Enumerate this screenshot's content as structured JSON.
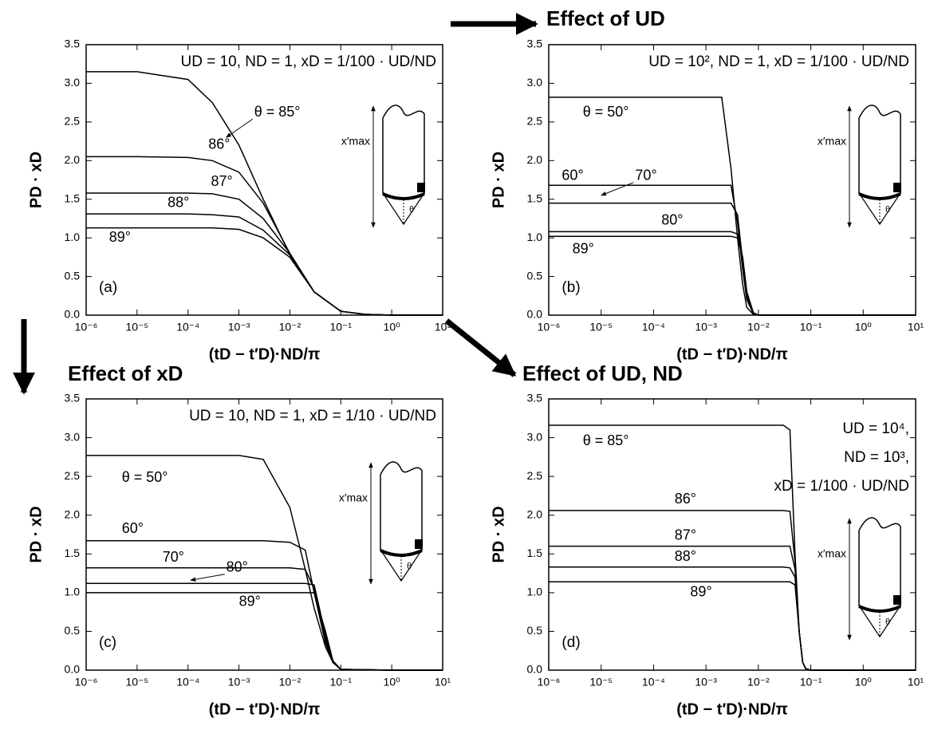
{
  "chart_data": [
    {
      "type": "line",
      "xscale": "log",
      "color": "#000000",
      "panel_label": "(a)",
      "annotation": [
        "UD = 10, ND = 1, xD = 1/100 · UD/ND"
      ],
      "inset_label": "x′max",
      "inset_angle": "θ",
      "xlabel": "(tD − t′D)·ND/π",
      "ylabel": "PD · xD",
      "xlim": [
        1e-06,
        10
      ],
      "ylim": [
        0,
        3.5
      ],
      "xticks": [
        {
          "value": 1e-06,
          "label": "10⁻⁶"
        },
        {
          "value": 1e-05,
          "label": "10⁻⁵"
        },
        {
          "value": 0.0001,
          "label": "10⁻⁴"
        },
        {
          "value": 0.001,
          "label": "10⁻³"
        },
        {
          "value": 0.01,
          "label": "10⁻²"
        },
        {
          "value": 0.1,
          "label": "10⁻¹"
        },
        {
          "value": 1,
          "label": "10⁰"
        },
        {
          "value": 10,
          "label": "10¹"
        }
      ],
      "yticks": [
        {
          "value": 0,
          "label": "0.0"
        },
        {
          "value": 0.5,
          "label": "0.5"
        },
        {
          "value": 1,
          "label": "1.0"
        },
        {
          "value": 1.5,
          "label": "1.5"
        },
        {
          "value": 2,
          "label": "2.0"
        },
        {
          "value": 2.5,
          "label": "2.5"
        },
        {
          "value": 3,
          "label": "3.0"
        },
        {
          "value": 3.5,
          "label": "3.5"
        }
      ],
      "x": [
        1e-06,
        1e-05,
        0.0001,
        0.0003,
        0.001,
        0.003,
        0.01,
        0.03,
        0.1,
        0.3,
        1,
        10
      ],
      "series": [
        {
          "name": "θ = 85°",
          "values": [
            3.15,
            3.15,
            3.05,
            2.75,
            2.2,
            1.5,
            0.78,
            0.3,
            0.05,
            0.01,
            0,
            0
          ]
        },
        {
          "name": "86°",
          "values": [
            2.05,
            2.05,
            2.04,
            2.0,
            1.85,
            1.45,
            0.8,
            0.3,
            0.05,
            0.01,
            0,
            0
          ]
        },
        {
          "name": "87°",
          "values": [
            1.58,
            1.58,
            1.58,
            1.57,
            1.5,
            1.25,
            0.8,
            0.3,
            0.05,
            0.01,
            0,
            0
          ]
        },
        {
          "name": "88°",
          "values": [
            1.31,
            1.31,
            1.31,
            1.3,
            1.27,
            1.1,
            0.78,
            0.3,
            0.05,
            0.01,
            0,
            0
          ]
        },
        {
          "name": "89°",
          "values": [
            1.13,
            1.13,
            1.13,
            1.13,
            1.11,
            1.0,
            0.75,
            0.3,
            0.05,
            0.01,
            0,
            0
          ]
        }
      ]
    },
    {
      "type": "line",
      "xscale": "log",
      "color": "#000000",
      "title": "Effect of UD",
      "panel_label": "(b)",
      "annotation": [
        "UD = 10², ND = 1, xD = 1/100 · UD/ND"
      ],
      "inset_label": "x′max",
      "inset_angle": "θ",
      "xlabel": "(tD − t′D)·ND/π",
      "ylabel": "PD · xD",
      "xlim": [
        1e-06,
        10
      ],
      "ylim": [
        0,
        3.5
      ],
      "xticks": [
        {
          "value": 1e-06,
          "label": "10⁻⁶"
        },
        {
          "value": 1e-05,
          "label": "10⁻⁵"
        },
        {
          "value": 0.0001,
          "label": "10⁻⁴"
        },
        {
          "value": 0.001,
          "label": "10⁻³"
        },
        {
          "value": 0.01,
          "label": "10⁻²"
        },
        {
          "value": 0.1,
          "label": "10⁻¹"
        },
        {
          "value": 1,
          "label": "10⁰"
        },
        {
          "value": 10,
          "label": "10¹"
        }
      ],
      "yticks": [
        {
          "value": 0,
          "label": "0.0"
        },
        {
          "value": 0.5,
          "label": "0.5"
        },
        {
          "value": 1,
          "label": "1.0"
        },
        {
          "value": 1.5,
          "label": "1.5"
        },
        {
          "value": 2,
          "label": "2.0"
        },
        {
          "value": 2.5,
          "label": "2.5"
        },
        {
          "value": 3,
          "label": "3.0"
        },
        {
          "value": 3.5,
          "label": "3.5"
        }
      ],
      "x": [
        1e-06,
        0.0001,
        0.001,
        0.002,
        0.003,
        0.004,
        0.005,
        0.006,
        0.008,
        0.01,
        1,
        10
      ],
      "series": [
        {
          "name": "θ = 50°",
          "values": [
            2.82,
            2.82,
            2.82,
            2.82,
            1.9,
            1.0,
            0.4,
            0.1,
            0.01,
            0,
            0,
            0
          ]
        },
        {
          "name": "60°",
          "values": [
            1.68,
            1.68,
            1.68,
            1.68,
            1.68,
            1.2,
            0.6,
            0.2,
            0.02,
            0,
            0,
            0
          ]
        },
        {
          "name": "70°",
          "values": [
            1.45,
            1.45,
            1.45,
            1.45,
            1.45,
            1.3,
            0.7,
            0.25,
            0.03,
            0,
            0,
            0
          ]
        },
        {
          "name": "80°",
          "values": [
            1.08,
            1.08,
            1.08,
            1.08,
            1.08,
            1.05,
            0.75,
            0.3,
            0.03,
            0,
            0,
            0
          ]
        },
        {
          "name": "89°",
          "values": [
            1.02,
            1.02,
            1.02,
            1.02,
            1.02,
            1.0,
            0.75,
            0.3,
            0.03,
            0,
            0,
            0
          ]
        }
      ]
    },
    {
      "type": "line",
      "xscale": "log",
      "color": "#000000",
      "title": "Effect of xD",
      "panel_label": "(c)",
      "annotation": [
        "UD = 10, ND = 1, xD = 1/10 · UD/ND"
      ],
      "inset_label": "x′max",
      "inset_angle": "θ",
      "xlabel": "(tD − t′D)·ND/π",
      "ylabel": "PD · xD",
      "xlim": [
        1e-06,
        10
      ],
      "ylim": [
        0,
        3.5
      ],
      "xticks": [
        {
          "value": 1e-06,
          "label": "10⁻⁶"
        },
        {
          "value": 1e-05,
          "label": "10⁻⁵"
        },
        {
          "value": 0.0001,
          "label": "10⁻⁴"
        },
        {
          "value": 0.001,
          "label": "10⁻³"
        },
        {
          "value": 0.01,
          "label": "10⁻²"
        },
        {
          "value": 0.1,
          "label": "10⁻¹"
        },
        {
          "value": 1,
          "label": "10⁰"
        },
        {
          "value": 10,
          "label": "10¹"
        }
      ],
      "yticks": [
        {
          "value": 0,
          "label": "0.0"
        },
        {
          "value": 0.5,
          "label": "0.5"
        },
        {
          "value": 1,
          "label": "1.0"
        },
        {
          "value": 1.5,
          "label": "1.5"
        },
        {
          "value": 2,
          "label": "2.0"
        },
        {
          "value": 2.5,
          "label": "2.5"
        },
        {
          "value": 3,
          "label": "3.0"
        },
        {
          "value": 3.5,
          "label": "3.5"
        }
      ],
      "x": [
        1e-06,
        0.0001,
        0.001,
        0.003,
        0.01,
        0.02,
        0.03,
        0.05,
        0.07,
        0.1,
        1,
        10
      ],
      "series": [
        {
          "name": "θ = 50°",
          "values": [
            2.77,
            2.77,
            2.77,
            2.72,
            2.1,
            1.3,
            0.8,
            0.3,
            0.1,
            0.01,
            0,
            0
          ]
        },
        {
          "name": "60°",
          "values": [
            1.67,
            1.67,
            1.67,
            1.67,
            1.65,
            1.55,
            1.0,
            0.35,
            0.1,
            0.01,
            0,
            0
          ]
        },
        {
          "name": "70°",
          "values": [
            1.32,
            1.32,
            1.32,
            1.32,
            1.32,
            1.3,
            1.05,
            0.4,
            0.1,
            0.01,
            0,
            0
          ]
        },
        {
          "name": "80°",
          "values": [
            1.12,
            1.12,
            1.12,
            1.12,
            1.12,
            1.12,
            1.1,
            0.45,
            0.1,
            0.01,
            0,
            0
          ]
        },
        {
          "name": "89°",
          "values": [
            1.0,
            1.0,
            1.0,
            1.0,
            1.0,
            1.0,
            1.0,
            0.5,
            0.12,
            0.01,
            0,
            0
          ]
        }
      ]
    },
    {
      "type": "line",
      "xscale": "log",
      "color": "#000000",
      "title": "Effect of UD, ND",
      "panel_label": "(d)",
      "annotation": [
        "UD = 10⁴,",
        "ND = 10³,",
        "xD = 1/100 · UD/ND"
      ],
      "inset_label": "x′max",
      "inset_angle": "θ",
      "xlabel": "(tD − t′D)·ND/π",
      "ylabel": "PD · xD",
      "xlim": [
        1e-06,
        10
      ],
      "ylim": [
        0,
        3.5
      ],
      "xticks": [
        {
          "value": 1e-06,
          "label": "10⁻⁶"
        },
        {
          "value": 1e-05,
          "label": "10⁻⁵"
        },
        {
          "value": 0.0001,
          "label": "10⁻⁴"
        },
        {
          "value": 0.001,
          "label": "10⁻³"
        },
        {
          "value": 0.01,
          "label": "10⁻²"
        },
        {
          "value": 0.1,
          "label": "10⁻¹"
        },
        {
          "value": 1,
          "label": "10⁰"
        },
        {
          "value": 10,
          "label": "10¹"
        }
      ],
      "yticks": [
        {
          "value": 0,
          "label": "0.0"
        },
        {
          "value": 0.5,
          "label": "0.5"
        },
        {
          "value": 1,
          "label": "1.0"
        },
        {
          "value": 1.5,
          "label": "1.5"
        },
        {
          "value": 2,
          "label": "2.0"
        },
        {
          "value": 2.5,
          "label": "2.5"
        },
        {
          "value": 3,
          "label": "3.0"
        },
        {
          "value": 3.5,
          "label": "3.5"
        }
      ],
      "x": [
        1e-06,
        0.001,
        0.01,
        0.03,
        0.04,
        0.05,
        0.06,
        0.07,
        0.08,
        0.1,
        1,
        10
      ],
      "series": [
        {
          "name": "θ = 85°",
          "values": [
            3.16,
            3.16,
            3.16,
            3.16,
            3.1,
            1.5,
            0.5,
            0.1,
            0.02,
            0,
            0,
            0
          ]
        },
        {
          "name": "86°",
          "values": [
            2.06,
            2.06,
            2.06,
            2.06,
            2.05,
            1.4,
            0.5,
            0.1,
            0.02,
            0,
            0,
            0
          ]
        },
        {
          "name": "87°",
          "values": [
            1.6,
            1.6,
            1.6,
            1.6,
            1.6,
            1.3,
            0.5,
            0.1,
            0.02,
            0,
            0,
            0
          ]
        },
        {
          "name": "88°",
          "values": [
            1.33,
            1.33,
            1.33,
            1.33,
            1.32,
            1.2,
            0.5,
            0.1,
            0.02,
            0,
            0,
            0
          ]
        },
        {
          "name": "89°",
          "values": [
            1.14,
            1.14,
            1.14,
            1.14,
            1.14,
            1.1,
            0.5,
            0.1,
            0.02,
            0,
            0,
            0
          ]
        }
      ]
    }
  ]
}
